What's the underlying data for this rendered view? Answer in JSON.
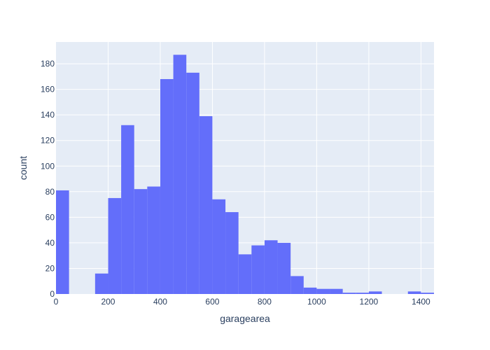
{
  "chart_data": {
    "type": "bar",
    "subtype": "histogram",
    "title": "",
    "xlabel": "garagearea",
    "ylabel": "count",
    "bin_width": 50,
    "bin_start": 0,
    "xlim": [
      0,
      1450
    ],
    "ylim": [
      0,
      197
    ],
    "x_ticks": [
      0,
      200,
      400,
      600,
      800,
      1000,
      1200,
      1400
    ],
    "y_ticks": [
      0,
      20,
      40,
      60,
      80,
      100,
      120,
      140,
      160,
      180
    ],
    "values": [
      81,
      0,
      0,
      16,
      75,
      132,
      82,
      84,
      168,
      187,
      173,
      139,
      74,
      64,
      31,
      38,
      42,
      40,
      14,
      5,
      4,
      4,
      1,
      1,
      2,
      0,
      0,
      2,
      1
    ],
    "grid": true,
    "legend": "none",
    "colors": {
      "bar": "#636efa",
      "plot_bg": "#e5ecf6",
      "grid": "#ffffff",
      "text": "#2a3f5f"
    }
  }
}
